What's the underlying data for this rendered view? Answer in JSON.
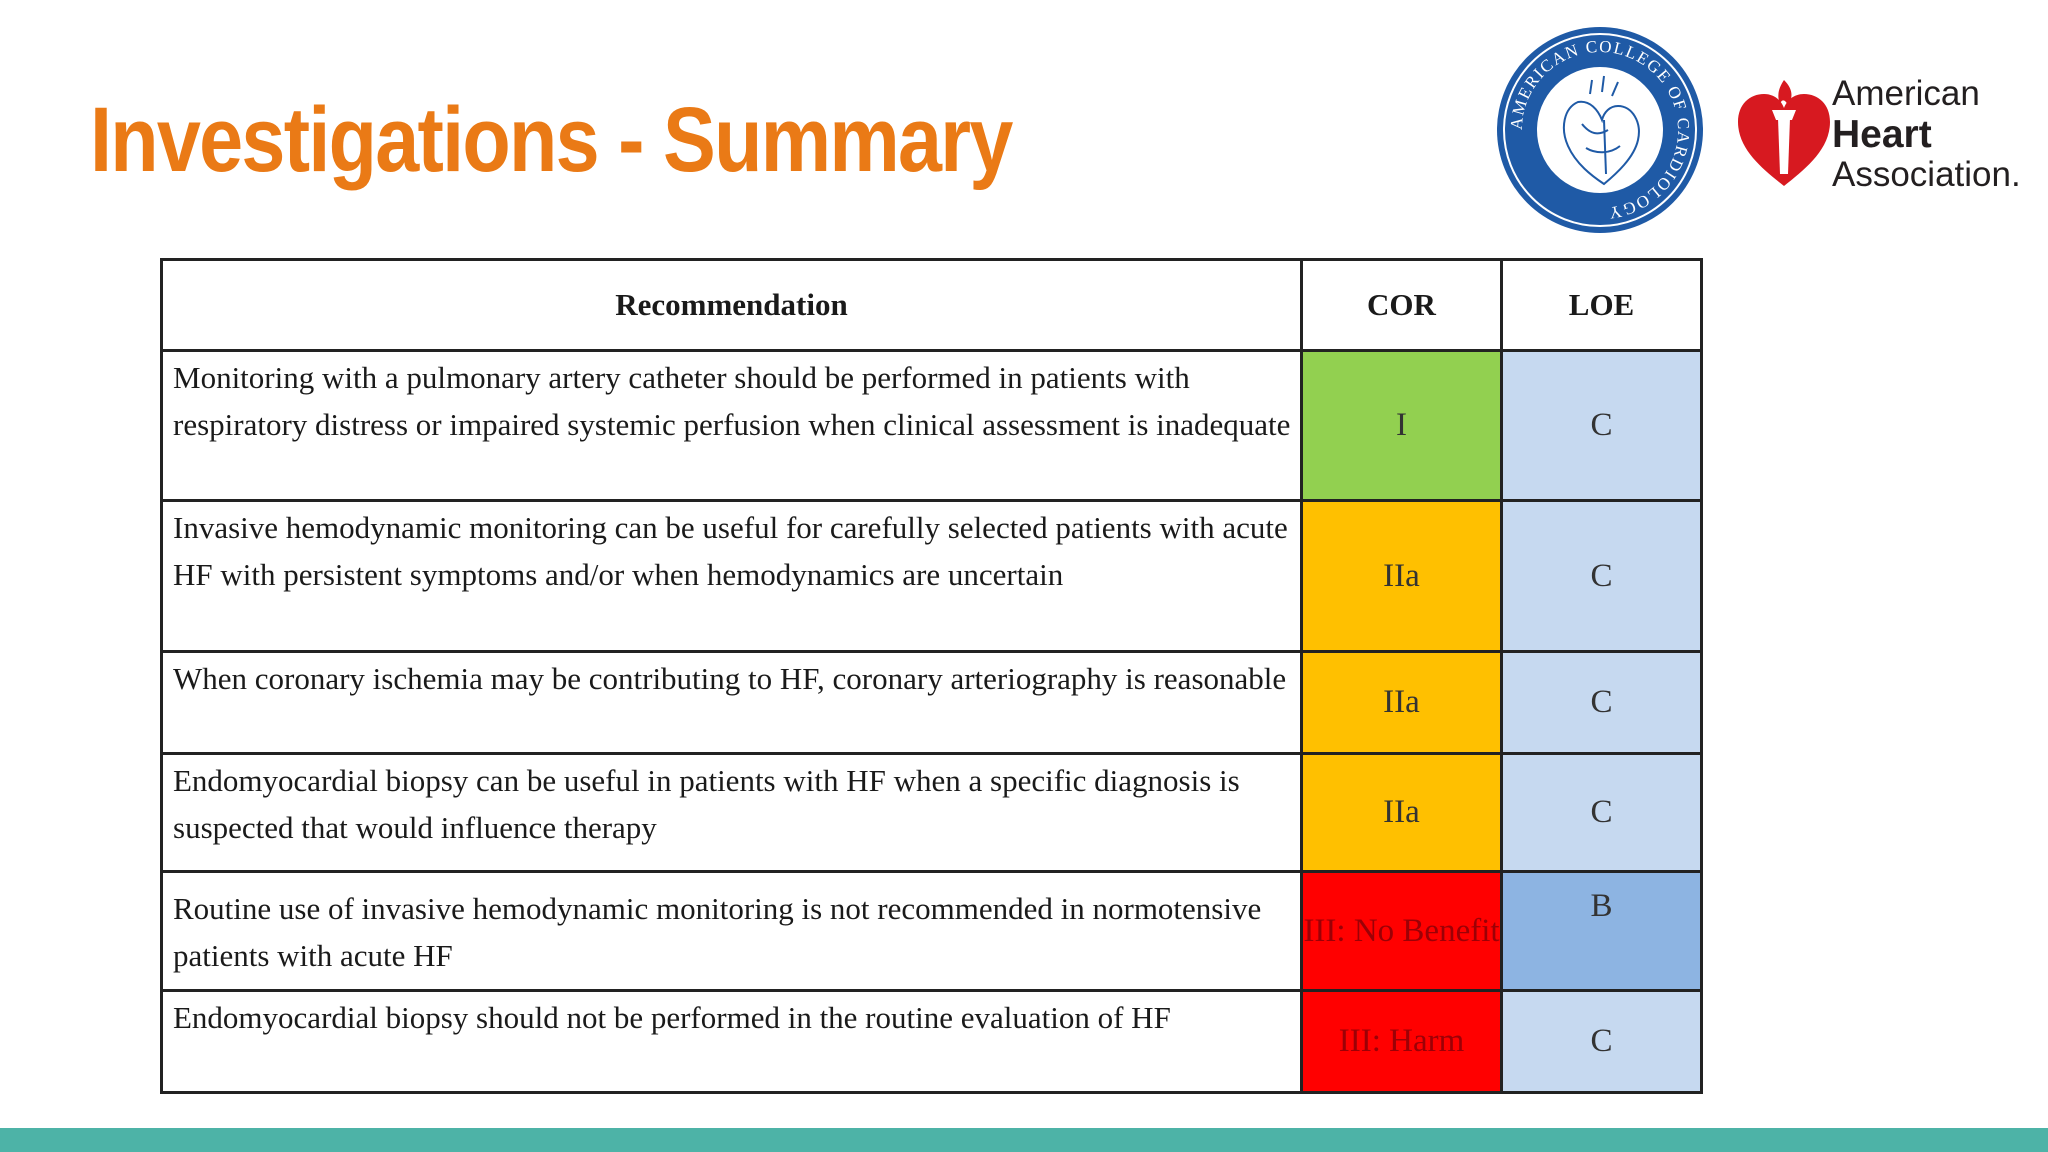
{
  "slide": {
    "title": "Investigations - Summary"
  },
  "logos": {
    "acc_seal": {
      "icon": "acc-seal-icon",
      "text": "AMERICAN COLLEGE OF CARDIOLOGY",
      "color": "#1f5aa6"
    },
    "aha": {
      "icon": "aha-heart-torch-icon",
      "line1": "American",
      "line2": "Heart",
      "line3": "Association.",
      "color": "#d71920"
    }
  },
  "table": {
    "headers": {
      "recommendation": "Recommendation",
      "cor": "COR",
      "loe": "LOE"
    },
    "rows": [
      {
        "recommendation": "Monitoring with a pulmonary artery catheter should be performed in patients with respiratory distress or impaired systemic perfusion when clinical assessment is inadequate",
        "cor": "I",
        "loe": "C",
        "cor_color": "#92d050",
        "loe_color": "#c6d9f0",
        "cor_text_color": "#333333"
      },
      {
        "recommendation": "Invasive hemodynamic monitoring can be useful for carefully selected patients with acute HF with persistent symptoms and/or when hemodynamics are uncertain",
        "cor": "IIa",
        "loe": "C",
        "cor_color": "#ffc000",
        "loe_color": "#c6d9f0",
        "cor_text_color": "#333333"
      },
      {
        "recommendation": "When coronary ischemia may be contributing to HF, coronary arteriography is reasonable",
        "cor": "IIa",
        "loe": "C",
        "cor_color": "#ffc000",
        "loe_color": "#c6d9f0",
        "cor_text_color": "#333333"
      },
      {
        "recommendation": "Endomyocardial biopsy can be useful in patients with HF when a specific diagnosis is suspected that would influence therapy",
        "cor": "IIa",
        "loe": "C",
        "cor_color": "#ffc000",
        "loe_color": "#c6d9f0",
        "cor_text_color": "#333333"
      },
      {
        "recommendation": "Routine use of invasive hemodynamic monitoring is not recommended in normotensive patients with acute HF",
        "cor": "III: No Benefit",
        "loe": "B",
        "cor_color": "#ff0000",
        "loe_color": "#8db4e2",
        "cor_text_color": "#9c0006"
      },
      {
        "recommendation": "Endomyocardial biopsy should not be performed in the routine evaluation of HF",
        "cor": "III: Harm",
        "loe": "C",
        "cor_color": "#ff0000",
        "loe_color": "#c6d9f0",
        "cor_text_color": "#9c0006"
      }
    ]
  },
  "theme": {
    "title_color": "#ea7a16",
    "bottom_bar_color": "#4db3a7"
  }
}
